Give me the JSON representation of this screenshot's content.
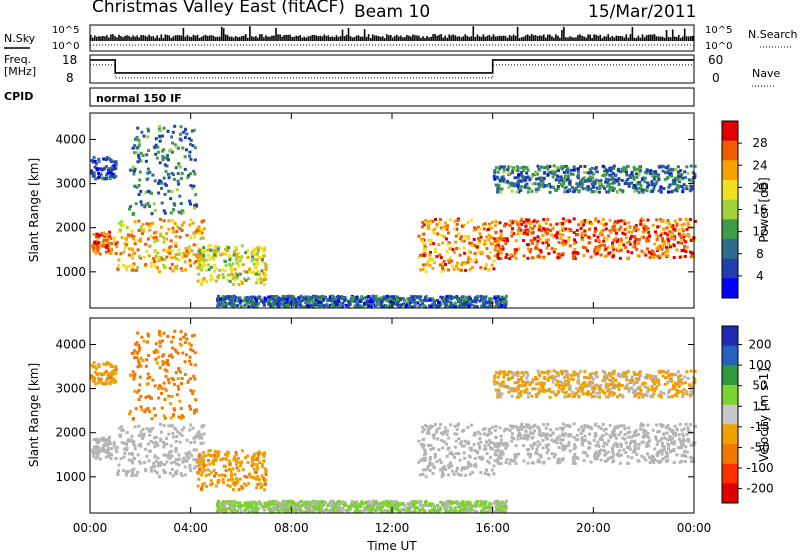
{
  "header": {
    "station": "Christmas Valley East (fitACF)",
    "beam": "Beam 10",
    "date": "15/Mar/2011"
  },
  "top_panels": {
    "nsky_label": "N.Sky",
    "nsky_ticks": [
      "10^5",
      "10^0"
    ],
    "nsearch_label": "N.Search",
    "nsearch_ticks": [
      "10^5",
      "10^0"
    ],
    "freq_label_1": "Freq.",
    "freq_label_2": "[MHz]",
    "freq_ticks": [
      "18",
      "8"
    ],
    "nave_label": "Nave",
    "nave_ticks": [
      "60",
      "0"
    ],
    "cpid_label": "CPID",
    "cpid_value": "normal 150 IF"
  },
  "colors": {
    "power_scale": [
      "#0000ff",
      "#1f3fb0",
      "#2e6c8c",
      "#3f9a4a",
      "#9fd23a",
      "#f0e020",
      "#f5a300",
      "#f05a00",
      "#e00000"
    ],
    "velocity_scale": [
      "#1f2bb0",
      "#2460c0",
      "#2f9a3c",
      "#7cd22f",
      "#c8c8c8",
      "#f0a000",
      "#f07800",
      "#ff3000",
      "#e00000"
    ],
    "ground_scatter": "#b4b4b4"
  },
  "chart_data": [
    {
      "type": "heatmap",
      "name": "power",
      "ylabel": "Slant Range [km]",
      "xlabel": "Time UT",
      "x_ticks": [
        "00:00",
        "04:00",
        "08:00",
        "12:00",
        "16:00",
        "20:00",
        "00:00"
      ],
      "xlim_hours": [
        0,
        24
      ],
      "y_ticks": [
        1000,
        2000,
        3000,
        4000
      ],
      "ylim_km": [
        180,
        4600
      ],
      "colorbar": {
        "label": "Power [dB]",
        "ticks": [
          4,
          8,
          12,
          16,
          20,
          24,
          28
        ],
        "range": [
          0,
          32
        ]
      },
      "scatter_regions": [
        {
          "t0": 0.0,
          "t1": 1.0,
          "r0": 1400,
          "r1": 1900,
          "level": 26
        },
        {
          "t0": 0.0,
          "t1": 1.0,
          "r0": 3100,
          "r1": 3600,
          "level": 6
        },
        {
          "t0": 1.0,
          "t1": 4.5,
          "r0": 1000,
          "r1": 2200,
          "level": 22
        },
        {
          "t0": 1.5,
          "t1": 4.2,
          "r0": 2300,
          "r1": 4300,
          "level": 10
        },
        {
          "t0": 4.2,
          "t1": 7.0,
          "r0": 700,
          "r1": 1600,
          "level": 18
        },
        {
          "t0": 13.0,
          "t1": 16.0,
          "r0": 1000,
          "r1": 2200,
          "level": 24
        },
        {
          "t0": 16.0,
          "t1": 24.0,
          "r0": 1300,
          "r1": 2200,
          "level": 27
        },
        {
          "t0": 16.0,
          "t1": 24.0,
          "r0": 2800,
          "r1": 3400,
          "level": 9
        },
        {
          "t0": 5.0,
          "t1": 16.5,
          "r0": 200,
          "r1": 450,
          "level": 8
        }
      ]
    },
    {
      "type": "heatmap",
      "name": "velocity",
      "ylabel": "Slant Range [km]",
      "xlabel": "Time UT",
      "x_ticks": [
        "00:00",
        "04:00",
        "08:00",
        "12:00",
        "16:00",
        "20:00",
        "00:00"
      ],
      "xlim_hours": [
        0,
        24
      ],
      "y_ticks": [
        1000,
        2000,
        3000,
        4000
      ],
      "ylim_km": [
        180,
        4600
      ],
      "colorbar": {
        "label": "Velocity [m s-1]",
        "ticks": [
          "200",
          "100",
          "50",
          "15",
          "-15",
          "-50",
          "-100",
          "-200"
        ],
        "range": [
          -250,
          250
        ]
      },
      "scatter_regions": [
        {
          "t0": 0.0,
          "t1": 1.0,
          "r0": 1400,
          "r1": 1900,
          "vel": 0
        },
        {
          "t0": 0.0,
          "t1": 1.0,
          "r0": 3100,
          "r1": 3600,
          "vel": -40
        },
        {
          "t0": 1.0,
          "t1": 4.5,
          "r0": 1000,
          "r1": 2200,
          "vel": 0
        },
        {
          "t0": 1.5,
          "t1": 4.2,
          "r0": 2300,
          "r1": 4300,
          "vel": -60
        },
        {
          "t0": 4.2,
          "t1": 7.0,
          "r0": 700,
          "r1": 1600,
          "vel": -40
        },
        {
          "t0": 13.0,
          "t1": 16.0,
          "r0": 1000,
          "r1": 2200,
          "vel": 0
        },
        {
          "t0": 16.0,
          "t1": 24.0,
          "r0": 1300,
          "r1": 2200,
          "vel": 0
        },
        {
          "t0": 16.0,
          "t1": 24.0,
          "r0": 2800,
          "r1": 3400,
          "vel": -20
        },
        {
          "t0": 5.0,
          "t1": 16.5,
          "r0": 200,
          "r1": 450,
          "vel": 20
        }
      ]
    },
    {
      "type": "line",
      "name": "frequency",
      "series": [
        {
          "name": "Freq.",
          "x_hours": [
            0,
            1,
            1,
            16,
            16,
            24
          ],
          "values": [
            16.5,
            16.5,
            11.5,
            11.5,
            16.5,
            16.5
          ]
        }
      ],
      "ylim": [
        8,
        18
      ]
    }
  ]
}
